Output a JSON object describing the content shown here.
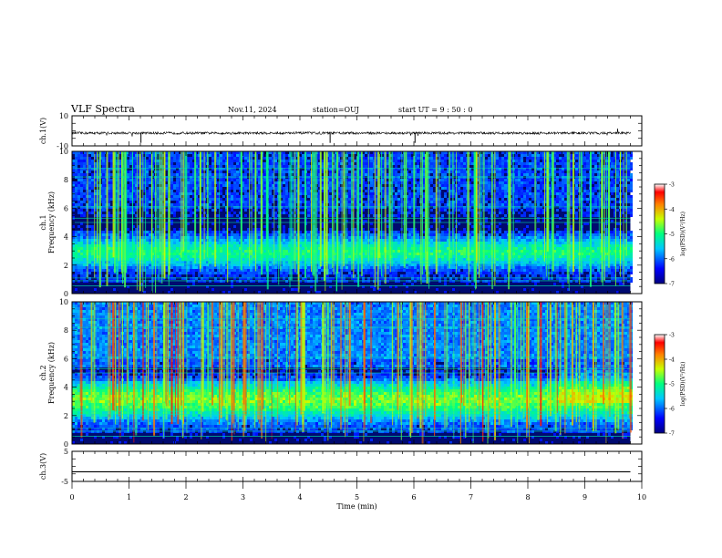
{
  "header": {
    "title": "VLF Spectra",
    "date": "Nov.11, 2024",
    "station": "station=OUJ",
    "start": "start  UT =   9 : 50 : 0"
  },
  "chart_data": [
    {
      "type": "line",
      "panel": "ch1-waveform",
      "ylabel": "ch.1(V)",
      "ylim": [
        -10,
        10
      ],
      "ytick_labels": [
        "-10",
        "10"
      ],
      "x_range": [
        0,
        10
      ],
      "description_level": -1.5
    },
    {
      "type": "heatmap",
      "panel": "ch1-spectrogram",
      "ylabel": "ch.1\nFrequency (kHz)",
      "ylabel_ch": "ch.1",
      "ylabel_freq": "Frequency (kHz)",
      "ylim": [
        0,
        10
      ],
      "ytick_labels": [
        "0",
        "2",
        "4",
        "6",
        "8",
        "10"
      ],
      "x_range": [
        0,
        10
      ],
      "data_extent_x": [
        0,
        9.8
      ],
      "colorbar": {
        "label": "log(PSD)(V²/Hz)",
        "range": [
          -7,
          -3
        ],
        "tick_labels": [
          "-3",
          "-4",
          "-5",
          "-6",
          "-7"
        ]
      }
    },
    {
      "type": "heatmap",
      "panel": "ch2-spectrogram",
      "ylabel_ch": "ch.2",
      "ylabel_freq": "Frequency (kHz)",
      "ylim": [
        0,
        10
      ],
      "ytick_labels": [
        "0",
        "2",
        "4",
        "6",
        "8",
        "10"
      ],
      "x_range": [
        0,
        10
      ],
      "data_extent_x": [
        0,
        9.8
      ],
      "colorbar": {
        "label": "log(PSD)(V²/Hz)",
        "range": [
          -7,
          -3
        ],
        "tick_labels": [
          "-3",
          "-4",
          "-5",
          "-6",
          "-7"
        ]
      }
    },
    {
      "type": "line",
      "panel": "ch3-waveform",
      "ylabel": "ch.3(V)",
      "ylim": [
        -5,
        5
      ],
      "ytick_labels": [
        "-5",
        "5"
      ],
      "x_range": [
        0,
        10
      ],
      "series": [
        {
          "values": [
            -1.8,
            -1.8
          ]
        }
      ],
      "xlabel": "Time  (min)",
      "xtick_labels": [
        "0",
        "1",
        "2",
        "3",
        "4",
        "5",
        "6",
        "7",
        "8",
        "9",
        "10"
      ]
    }
  ],
  "colors": {
    "axis": "#000000",
    "trace": "#000000"
  }
}
